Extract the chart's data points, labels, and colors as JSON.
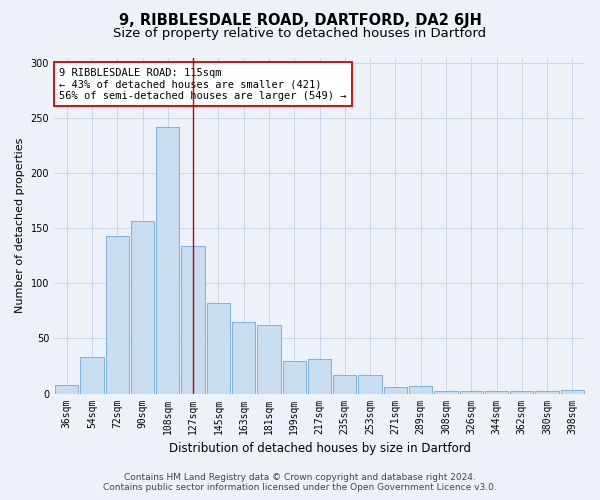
{
  "title_line1": "9, RIBBLESDALE ROAD, DARTFORD, DA2 6JH",
  "title_line2": "Size of property relative to detached houses in Dartford",
  "xlabel": "Distribution of detached houses by size in Dartford",
  "ylabel": "Number of detached properties",
  "categories": [
    "36sqm",
    "54sqm",
    "72sqm",
    "90sqm",
    "108sqm",
    "127sqm",
    "145sqm",
    "163sqm",
    "181sqm",
    "199sqm",
    "217sqm",
    "235sqm",
    "253sqm",
    "271sqm",
    "289sqm",
    "308sqm",
    "326sqm",
    "344sqm",
    "362sqm",
    "380sqm",
    "398sqm"
  ],
  "values": [
    8,
    33,
    143,
    157,
    242,
    134,
    82,
    65,
    62,
    30,
    31,
    17,
    17,
    6,
    7,
    2,
    2,
    2,
    2,
    2,
    3
  ],
  "bar_color": "#c9ddf0",
  "bar_edge_color": "#6ea8d8",
  "bar_width": 0.92,
  "vline_x": 5,
  "vline_color": "#cc0000",
  "annotation_text": "9 RIBBLESDALE ROAD: 115sqm\n← 43% of detached houses are smaller (421)\n56% of semi-detached houses are larger (549) →",
  "annotation_box_color": "white",
  "annotation_box_edge": "#cc0000",
  "footer_line1": "Contains HM Land Registry data © Crown copyright and database right 2024.",
  "footer_line2": "Contains public sector information licensed under the Open Government Licence v3.0.",
  "bg_color": "#edf2f9",
  "grid_color": "#d8e4f0",
  "ylim": [
    0,
    305
  ],
  "yticks": [
    0,
    50,
    100,
    150,
    200,
    250,
    300
  ],
  "title_fontsize": 10.5,
  "subtitle_fontsize": 9.5,
  "xlabel_fontsize": 8.5,
  "ylabel_fontsize": 8,
  "tick_fontsize": 7,
  "ann_fontsize": 7.5,
  "footer_fontsize": 6.5
}
